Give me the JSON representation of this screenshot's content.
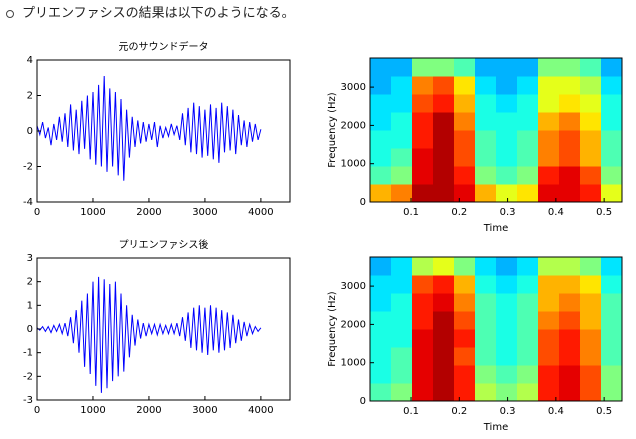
{
  "bullet": "プリエンファシスの結果は以下のようになる。",
  "chart_data": [
    {
      "type": "line",
      "title": "元のサウンドデータ",
      "color": "#0000ff",
      "x": [
        0,
        50,
        100,
        150,
        200,
        250,
        300,
        350,
        400,
        450,
        500,
        550,
        600,
        650,
        700,
        750,
        800,
        850,
        900,
        950,
        1000,
        1050,
        1100,
        1150,
        1200,
        1250,
        1300,
        1350,
        1400,
        1450,
        1500,
        1550,
        1600,
        1650,
        1700,
        1750,
        1800,
        1850,
        1900,
        1950,
        2000,
        2050,
        2100,
        2150,
        2200,
        2250,
        2300,
        2350,
        2400,
        2450,
        2500,
        2550,
        2600,
        2650,
        2700,
        2750,
        2800,
        2850,
        2900,
        2950,
        3000,
        3050,
        3100,
        3150,
        3200,
        3250,
        3300,
        3350,
        3400,
        3450,
        3500,
        3550,
        3600,
        3650,
        3700,
        3750,
        3800,
        3850,
        3900,
        3950,
        4000
      ],
      "values": [
        0.3,
        -0.2,
        0.5,
        -0.4,
        0.2,
        -0.8,
        0.4,
        -0.5,
        0.8,
        -0.6,
        1.0,
        -0.9,
        1.5,
        -1.1,
        1.2,
        -1.3,
        1.7,
        -1.0,
        2.0,
        -1.6,
        2.2,
        -1.9,
        2.6,
        -2.0,
        3.1,
        -2.3,
        2.4,
        -2.0,
        2.2,
        -2.5,
        1.8,
        -2.8,
        1.2,
        -1.5,
        0.8,
        -0.9,
        0.6,
        -0.7,
        0.5,
        -0.6,
        0.4,
        -0.5,
        0.5,
        -0.9,
        0.3,
        -0.4,
        0.2,
        -0.3,
        0.4,
        -0.2,
        0.3,
        -0.5,
        1.0,
        -0.8,
        1.3,
        -1.2,
        1.6,
        -1.3,
        1.4,
        -1.5,
        1.2,
        -1.4,
        1.5,
        -1.6,
        1.3,
        -1.8,
        1.6,
        -1.2,
        1.4,
        -1.1,
        1.2,
        -1.3,
        0.9,
        -0.8,
        0.6,
        -0.9,
        0.5,
        -0.6,
        0.4,
        -0.5,
        0.1
      ],
      "xlim": [
        0,
        4520
      ],
      "xticks": [
        0,
        1000,
        2000,
        3000,
        4000
      ],
      "ylim": [
        -4,
        4
      ],
      "yticks": [
        -4,
        -2,
        0,
        2,
        4
      ]
    },
    {
      "type": "heatmap",
      "colormap": "jet",
      "xlabel": "Time",
      "ylabel": "Frequency (Hz)",
      "x": [
        0.037,
        0.08,
        0.124,
        0.167,
        0.211,
        0.254,
        0.298,
        0.341,
        0.385,
        0.428,
        0.472,
        0.515
      ],
      "y": [
        235,
        705,
        1175,
        1645,
        2115,
        2585,
        3055,
        3525
      ],
      "values": [
        [
          0.7,
          0.75,
          0.95,
          0.95,
          0.9,
          0.7,
          0.6,
          0.65,
          0.9,
          0.9,
          0.85,
          0.6
        ],
        [
          0.45,
          0.5,
          0.9,
          0.95,
          0.85,
          0.5,
          0.45,
          0.5,
          0.85,
          0.9,
          0.8,
          0.5
        ],
        [
          0.4,
          0.45,
          0.9,
          0.95,
          0.8,
          0.45,
          0.4,
          0.45,
          0.75,
          0.8,
          0.7,
          0.45
        ],
        [
          0.4,
          0.4,
          0.85,
          0.95,
          0.8,
          0.45,
          0.4,
          0.45,
          0.75,
          0.8,
          0.7,
          0.45
        ],
        [
          0.35,
          0.4,
          0.85,
          0.95,
          0.75,
          0.4,
          0.4,
          0.4,
          0.7,
          0.75,
          0.65,
          0.4
        ],
        [
          0.35,
          0.35,
          0.8,
          0.85,
          0.7,
          0.4,
          0.35,
          0.4,
          0.6,
          0.65,
          0.6,
          0.4
        ],
        [
          0.3,
          0.35,
          0.75,
          0.8,
          0.65,
          0.35,
          0.3,
          0.35,
          0.6,
          0.6,
          0.55,
          0.35
        ],
        [
          0.3,
          0.3,
          0.5,
          0.5,
          0.45,
          0.3,
          0.3,
          0.3,
          0.5,
          0.5,
          0.45,
          0.3
        ]
      ],
      "xlim": [
        0.015,
        0.537
      ],
      "xticks": [
        0.1,
        0.2,
        0.3,
        0.4,
        0.5
      ],
      "ylim": [
        0,
        3760
      ],
      "yticks": [
        0,
        1000,
        2000,
        3000
      ]
    },
    {
      "type": "line",
      "title": "プリエンファシス後",
      "color": "#0000ff",
      "x": [
        0,
        50,
        100,
        150,
        200,
        250,
        300,
        350,
        400,
        450,
        500,
        550,
        600,
        650,
        700,
        750,
        800,
        850,
        900,
        950,
        1000,
        1050,
        1100,
        1150,
        1200,
        1250,
        1300,
        1350,
        1400,
        1450,
        1500,
        1550,
        1600,
        1650,
        1700,
        1750,
        1800,
        1850,
        1900,
        1950,
        2000,
        2050,
        2100,
        2150,
        2200,
        2250,
        2300,
        2350,
        2400,
        2450,
        2500,
        2550,
        2600,
        2650,
        2700,
        2750,
        2800,
        2850,
        2900,
        2950,
        3000,
        3050,
        3100,
        3150,
        3200,
        3250,
        3300,
        3350,
        3400,
        3450,
        3500,
        3550,
        3600,
        3650,
        3700,
        3750,
        3800,
        3850,
        3900,
        3950,
        4000
      ],
      "values": [
        0.05,
        -0.05,
        0.1,
        -0.1,
        0.1,
        -0.15,
        0.15,
        -0.1,
        0.2,
        -0.2,
        0.25,
        -0.3,
        0.5,
        -0.6,
        0.8,
        -1.0,
        1.2,
        -1.6,
        1.5,
        -1.9,
        2.0,
        -2.4,
        2.2,
        -2.7,
        2.1,
        -2.5,
        1.9,
        -2.2,
        2.0,
        -2.0,
        1.5,
        -1.8,
        1.0,
        -1.2,
        0.6,
        -0.7,
        0.4,
        -0.4,
        0.25,
        -0.3,
        0.2,
        -0.2,
        0.2,
        -0.25,
        0.2,
        -0.2,
        0.15,
        -0.2,
        0.2,
        -0.2,
        0.25,
        -0.3,
        0.5,
        -0.5,
        0.7,
        -0.8,
        0.9,
        -0.9,
        1.0,
        -1.0,
        0.9,
        -1.1,
        1.0,
        -0.9,
        0.9,
        -1.0,
        0.8,
        -0.9,
        0.7,
        -0.8,
        0.6,
        -0.6,
        0.4,
        -0.5,
        0.3,
        -0.3,
        0.2,
        -0.2,
        0.1,
        -0.1,
        0.05
      ],
      "xlim": [
        0,
        4520
      ],
      "xticks": [
        0,
        1000,
        2000,
        3000,
        4000
      ],
      "ylim": [
        -3,
        3
      ],
      "yticks": [
        -3,
        -2,
        -1,
        0,
        1,
        2,
        3
      ]
    },
    {
      "type": "heatmap",
      "colormap": "jet",
      "xlabel": "Time",
      "ylabel": "Frequency (Hz)",
      "x": [
        0.037,
        0.08,
        0.124,
        0.167,
        0.211,
        0.254,
        0.298,
        0.341,
        0.385,
        0.428,
        0.472,
        0.515
      ],
      "y": [
        235,
        705,
        1175,
        1645,
        2115,
        2585,
        3055,
        3525
      ],
      "values": [
        [
          0.45,
          0.5,
          0.9,
          0.95,
          0.85,
          0.55,
          0.5,
          0.55,
          0.85,
          0.9,
          0.8,
          0.5
        ],
        [
          0.4,
          0.45,
          0.9,
          0.95,
          0.85,
          0.5,
          0.45,
          0.5,
          0.85,
          0.9,
          0.8,
          0.5
        ],
        [
          0.4,
          0.45,
          0.9,
          0.95,
          0.8,
          0.45,
          0.4,
          0.45,
          0.8,
          0.85,
          0.75,
          0.45
        ],
        [
          0.4,
          0.4,
          0.9,
          0.95,
          0.85,
          0.45,
          0.4,
          0.45,
          0.8,
          0.85,
          0.75,
          0.45
        ],
        [
          0.4,
          0.4,
          0.85,
          0.95,
          0.8,
          0.45,
          0.4,
          0.45,
          0.75,
          0.8,
          0.7,
          0.45
        ],
        [
          0.35,
          0.4,
          0.85,
          0.9,
          0.75,
          0.45,
          0.4,
          0.45,
          0.7,
          0.75,
          0.7,
          0.45
        ],
        [
          0.35,
          0.35,
          0.8,
          0.85,
          0.7,
          0.4,
          0.35,
          0.4,
          0.7,
          0.7,
          0.65,
          0.4
        ],
        [
          0.3,
          0.35,
          0.55,
          0.6,
          0.5,
          0.35,
          0.3,
          0.35,
          0.55,
          0.55,
          0.5,
          0.35
        ]
      ],
      "xlim": [
        0.015,
        0.537
      ],
      "xticks": [
        0.1,
        0.2,
        0.3,
        0.4,
        0.5
      ],
      "ylim": [
        0,
        3760
      ],
      "yticks": [
        0,
        1000,
        2000,
        3000
      ]
    }
  ]
}
